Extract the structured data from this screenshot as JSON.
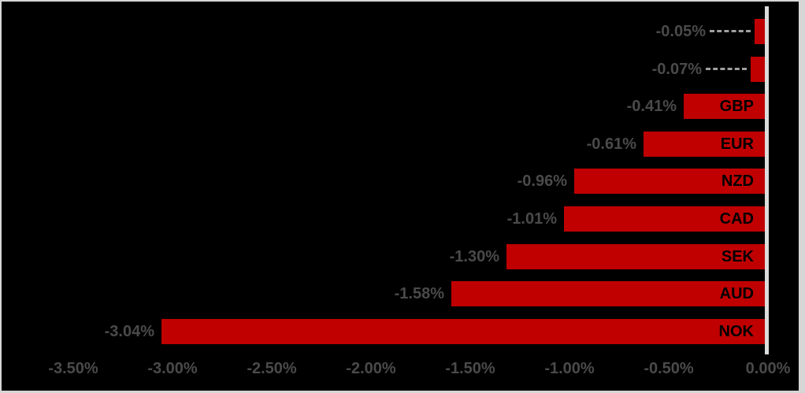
{
  "chart_data": {
    "type": "bar",
    "orientation": "horizontal",
    "title": "",
    "xlabel": "",
    "ylabel": "",
    "unit": "%",
    "xlim": [
      -3.6,
      0.0
    ],
    "grid": false,
    "legend": false,
    "series": [
      {
        "category": "",
        "value": -0.05,
        "value_label": "-0.05%",
        "leader_line": true
      },
      {
        "category": "",
        "value": -0.07,
        "value_label": "-0.07%",
        "leader_line": true
      },
      {
        "category": "GBP",
        "value": -0.41,
        "value_label": "-0.41%",
        "leader_line": false
      },
      {
        "category": "EUR",
        "value": -0.61,
        "value_label": "-0.61%",
        "leader_line": false
      },
      {
        "category": "NZD",
        "value": -0.96,
        "value_label": "-0.96%",
        "leader_line": false
      },
      {
        "category": "CAD",
        "value": -1.01,
        "value_label": "-1.01%",
        "leader_line": false
      },
      {
        "category": "SEK",
        "value": -1.3,
        "value_label": "-1.30%",
        "leader_line": false
      },
      {
        "category": "AUD",
        "value": -1.58,
        "value_label": "-1.58%",
        "leader_line": false
      },
      {
        "category": "NOK",
        "value": -3.04,
        "value_label": "-3.04%",
        "leader_line": false
      }
    ],
    "x_axis_ticks": [
      "-3.50%",
      "-3.00%",
      "-2.50%",
      "-2.00%",
      "-1.50%",
      "-1.00%",
      "-0.50%",
      "0.00%"
    ],
    "colors": {
      "bar": "#C00000",
      "value_text": "#4a4a4a",
      "category_text": "#000000",
      "axis_text": "#4a4a4a",
      "zero_axis_line": "#dcdcdc",
      "leader_line": "#9f9f9f",
      "background": "#000000",
      "frame_border": "#d6d6d6"
    }
  }
}
